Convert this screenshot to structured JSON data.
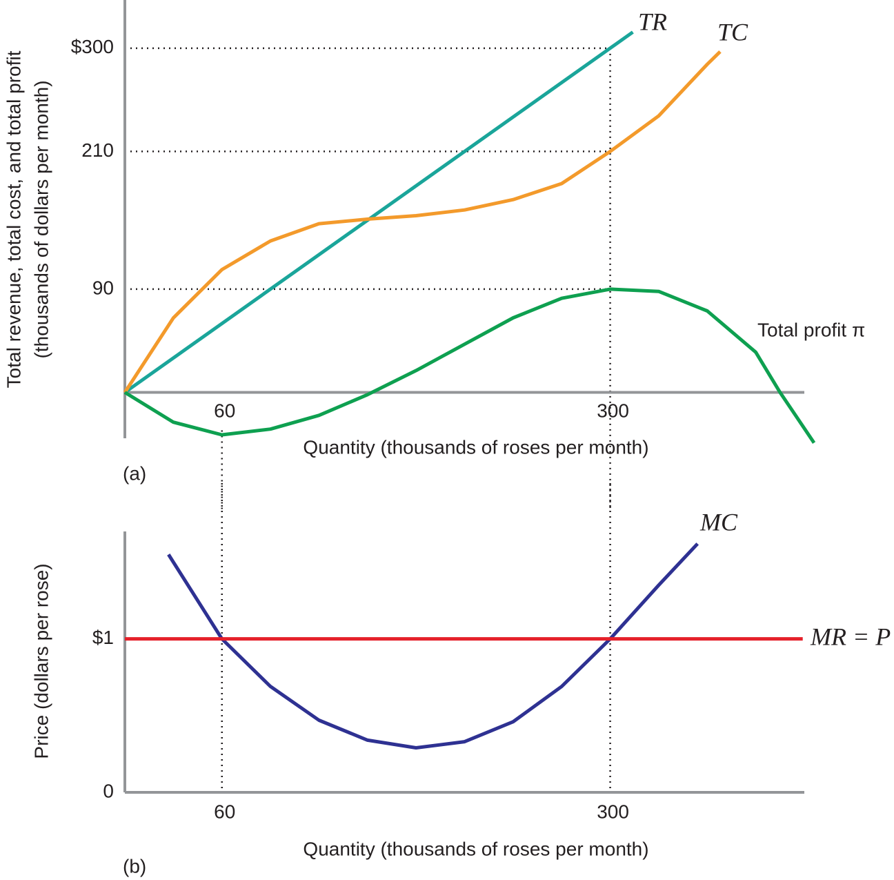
{
  "chart_data": [
    {
      "type": "line",
      "panel_label": "(a)",
      "y_label": [
        "Total revenue, total cost, and total profit",
        "(thousands of dollars per month)"
      ],
      "x_label": "Quantity (thousands of roses per month)",
      "xlim": [
        0,
        420
      ],
      "ylim": [
        -40,
        342
      ],
      "xticks": [
        60,
        300
      ],
      "yticks": [
        {
          "value": 300,
          "label": "$300"
        },
        210,
        90
      ],
      "grid": "dotted",
      "vlines": [
        60,
        300
      ],
      "series": [
        {
          "name": "TR",
          "color": "#1aa59a",
          "x": [
            0,
            314
          ],
          "values": [
            0,
            314
          ]
        },
        {
          "name": "TC",
          "color": "#f39a2b",
          "x": [
            0,
            30,
            60,
            90,
            120,
            150,
            180,
            210,
            240,
            270,
            300,
            330,
            360,
            368
          ],
          "values": [
            0,
            65,
            107,
            132,
            147,
            151,
            154,
            159,
            168,
            182,
            210,
            241,
            286,
            297
          ]
        },
        {
          "name": "Total profit π",
          "color": "#0ea050",
          "x": [
            0,
            30,
            60,
            90,
            120,
            150,
            180,
            210,
            240,
            270,
            300,
            330,
            360,
            390,
            405,
            426
          ],
          "values": [
            0,
            -26,
            -37,
            -32,
            -20,
            -2,
            19,
            42,
            65,
            82,
            90,
            88,
            71,
            35,
            0,
            -44
          ]
        }
      ]
    },
    {
      "type": "line",
      "panel_label": "(b)",
      "y_label": [
        "Price (dollars per rose)"
      ],
      "x_label": "Quantity (thousands of roses per month)",
      "xlim": [
        0,
        420
      ],
      "ylim": [
        0,
        1.7
      ],
      "xticks": [
        60,
        300
      ],
      "yticks": [
        0,
        {
          "value": 1,
          "label": "$1"
        }
      ],
      "grid": false,
      "vlines": [
        60,
        300
      ],
      "series": [
        {
          "name": "MC",
          "color": "#2e3192",
          "x": [
            27,
            60,
            90,
            120,
            150,
            180,
            210,
            240,
            270,
            300,
            330,
            354
          ],
          "values": [
            1.55,
            1.0,
            0.69,
            0.47,
            0.34,
            0.29,
            0.33,
            0.46,
            0.69,
            1.0,
            1.35,
            1.62
          ]
        },
        {
          "name": "MR = P",
          "color": "#e5202a",
          "x": [
            0,
            419
          ],
          "values": [
            1,
            1
          ]
        }
      ]
    }
  ]
}
